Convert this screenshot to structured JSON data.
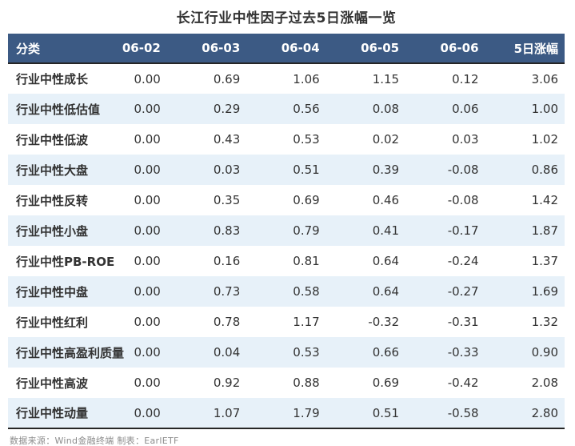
{
  "title": "长江行业中性因子过去5日涨幅一览",
  "footer": {
    "source": "数据来源：Wind金融终端 制表：EarlETF"
  },
  "colors": {
    "header_bg": "#3c5a84",
    "header_text": "#ffffff",
    "row_alt_bg": "#e7f1f9",
    "cell_text": "#333333",
    "border_dark": "#262626",
    "footer_text": "#8c8c8c"
  },
  "chart_data": {
    "type": "table",
    "title": "长江行业中性因子过去5日涨幅一览",
    "columns": [
      "分类",
      "06-02",
      "06-03",
      "06-04",
      "06-05",
      "06-06",
      "5日涨幅"
    ],
    "rows": [
      {
        "label": "行业中性成长",
        "values": [
          "0.00",
          "0.69",
          "1.06",
          "1.15",
          "0.12",
          "3.06"
        ]
      },
      {
        "label": "行业中性低估值",
        "values": [
          "0.00",
          "0.29",
          "0.56",
          "0.08",
          "0.06",
          "1.00"
        ]
      },
      {
        "label": "行业中性低波",
        "values": [
          "0.00",
          "0.43",
          "0.53",
          "0.02",
          "0.03",
          "1.02"
        ]
      },
      {
        "label": "行业中性大盘",
        "values": [
          "0.00",
          "0.03",
          "0.51",
          "0.39",
          "-0.08",
          "0.86"
        ]
      },
      {
        "label": "行业中性反转",
        "values": [
          "0.00",
          "0.35",
          "0.69",
          "0.46",
          "-0.08",
          "1.42"
        ]
      },
      {
        "label": "行业中性小盘",
        "values": [
          "0.00",
          "0.83",
          "0.79",
          "0.41",
          "-0.17",
          "1.87"
        ]
      },
      {
        "label": "行业中性PB-ROE",
        "values": [
          "0.00",
          "0.16",
          "0.81",
          "0.64",
          "-0.24",
          "1.37"
        ]
      },
      {
        "label": "行业中性中盘",
        "values": [
          "0.00",
          "0.73",
          "0.58",
          "0.64",
          "-0.27",
          "1.69"
        ]
      },
      {
        "label": "行业中性红利",
        "values": [
          "0.00",
          "0.78",
          "1.17",
          "-0.32",
          "-0.31",
          "1.32"
        ]
      },
      {
        "label": "行业中性高盈利质量",
        "values": [
          "0.00",
          "0.04",
          "0.53",
          "0.66",
          "-0.33",
          "0.90"
        ]
      },
      {
        "label": "行业中性高波",
        "values": [
          "0.00",
          "0.92",
          "0.88",
          "0.69",
          "-0.42",
          "2.08"
        ]
      },
      {
        "label": "行业中性动量",
        "values": [
          "0.00",
          "1.07",
          "1.79",
          "0.51",
          "-0.58",
          "2.80"
        ]
      }
    ]
  }
}
